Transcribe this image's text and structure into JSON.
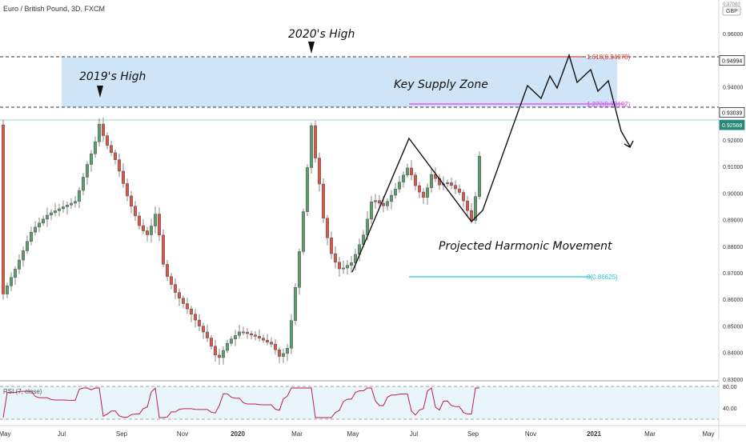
{
  "header": {
    "title": "Euro / British Pound, 3D, FXCM"
  },
  "annotations": {
    "high_2019": "2019's High",
    "high_2020": "2020's High",
    "supply_zone": "Key Supply Zone",
    "projection": "Projected Harmonic Movement"
  },
  "price_axis": {
    "currency_top": "GBP",
    "currency_top_small": "0.97000",
    "ticks": [
      "0.96000",
      "0.95000",
      "0.94000",
      "0.93000",
      "0.92000",
      "0.91000",
      "0.90000",
      "0.89000",
      "0.88000",
      "0.87000",
      "0.86000",
      "0.85000",
      "0.84000",
      "0.83000"
    ],
    "labels": [
      {
        "text": "0.94994",
        "value": 0.94994,
        "style": "dark"
      },
      {
        "text": "0.93039",
        "value": 0.93039,
        "style": "dark"
      },
      {
        "text": "0.92568",
        "value": 0.92568,
        "style": "green"
      }
    ]
  },
  "fib": [
    {
      "text": "1.618(0.94978)",
      "value": 0.94978,
      "color": "#e53935"
    },
    {
      "text": "1.272(0.93192)",
      "value": 0.93192,
      "color": "#e040fb"
    },
    {
      "text": "0(0.86625)",
      "value": 0.86625,
      "color": "#26c6da"
    }
  ],
  "rsi": {
    "label": "RSI (7, close)",
    "ticks": [
      "80.00",
      "40.00"
    ],
    "line_color": "#c2185b"
  },
  "time_axis": {
    "labels": [
      "May",
      "Jul",
      "Sep",
      "Nov",
      "2020",
      "Mar",
      "May",
      "Jul",
      "Sep",
      "Nov",
      "2021",
      "Mar",
      "May"
    ],
    "bold": [
      "2020",
      "2021"
    ]
  },
  "colors": {
    "up": "#5d9e6f",
    "down": "#d9584a",
    "zone": "#cfe4f7",
    "rsi_bg": "#e8f6fb"
  },
  "chart_data": {
    "type": "candlestick",
    "title": "Euro / British Pound, 3D, FXCM",
    "ylim": [
      0.826,
      0.972
    ],
    "supply_zone": [
      0.93039,
      0.94994
    ],
    "horizontal_levels": [
      0.94994,
      0.93039,
      0.92568
    ],
    "pivots": [
      0.8668,
      0.9185,
      0.8875,
      0.9385,
      0.9355,
      0.9445,
      0.9398,
      0.9499,
      0.939,
      0.9435,
      0.936,
      0.9395,
      0.9155
    ]
  }
}
